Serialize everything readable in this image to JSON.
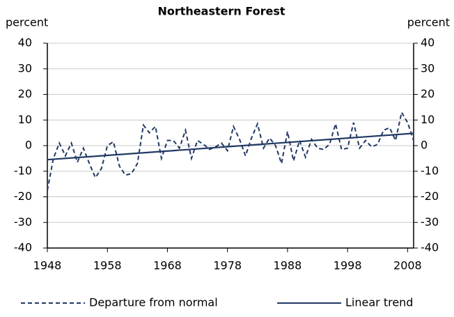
{
  "chart_data": {
    "type": "line",
    "title": "Northeastern Forest",
    "y_label": "percent",
    "y2_label": "percent",
    "x": [
      1948,
      1949,
      1950,
      1951,
      1952,
      1953,
      1954,
      1955,
      1956,
      1957,
      1958,
      1959,
      1960,
      1961,
      1962,
      1963,
      1964,
      1965,
      1966,
      1967,
      1968,
      1969,
      1970,
      1971,
      1972,
      1973,
      1974,
      1975,
      1976,
      1977,
      1978,
      1979,
      1980,
      1981,
      1982,
      1983,
      1984,
      1985,
      1986,
      1987,
      1988,
      1989,
      1990,
      1991,
      1992,
      1993,
      1994,
      1995,
      1996,
      1997,
      1998,
      1999,
      2000,
      2001,
      2002,
      2003,
      2004,
      2005,
      2006,
      2007,
      2008,
      2009
    ],
    "series": [
      {
        "name": "Departure from normal",
        "color": "#203864",
        "dashed": true,
        "values": [
          -17.5,
          -5,
          1,
          -4,
          1,
          -6.5,
          -1,
          -7,
          -12.5,
          -9,
          0,
          1.5,
          -8,
          -11.5,
          -11,
          -7,
          8,
          5,
          7.5,
          -5,
          2,
          2,
          -1,
          6,
          -5,
          2,
          0.5,
          -1.5,
          -0.5,
          1,
          -2,
          7.5,
          2.5,
          -4,
          3,
          8.5,
          -1,
          3,
          0,
          -7,
          5.5,
          -6,
          2,
          -4.5,
          2.5,
          -1,
          -1.5,
          0.5,
          8.5,
          -1.5,
          -1,
          9,
          -1,
          2,
          -0.5,
          0.5,
          6,
          7,
          2,
          13,
          9,
          2
        ]
      },
      {
        "name": "Linear trend",
        "color": "#203864",
        "dashed": false,
        "x": [
          1948,
          2009
        ],
        "values": [
          -5.5,
          4.8
        ]
      }
    ],
    "xlim": [
      1948,
      2009
    ],
    "xticks": [
      1948,
      1958,
      1968,
      1978,
      1988,
      1998,
      2008
    ],
    "ylim": [
      -40,
      40
    ],
    "yticks": [
      -40,
      -30,
      -20,
      -10,
      0,
      10,
      20,
      30,
      40
    ],
    "y2lim": [
      -40,
      40
    ],
    "y2ticks": [
      -40,
      -30,
      -20,
      -10,
      0,
      10,
      20,
      30,
      40
    ],
    "grid": true
  }
}
